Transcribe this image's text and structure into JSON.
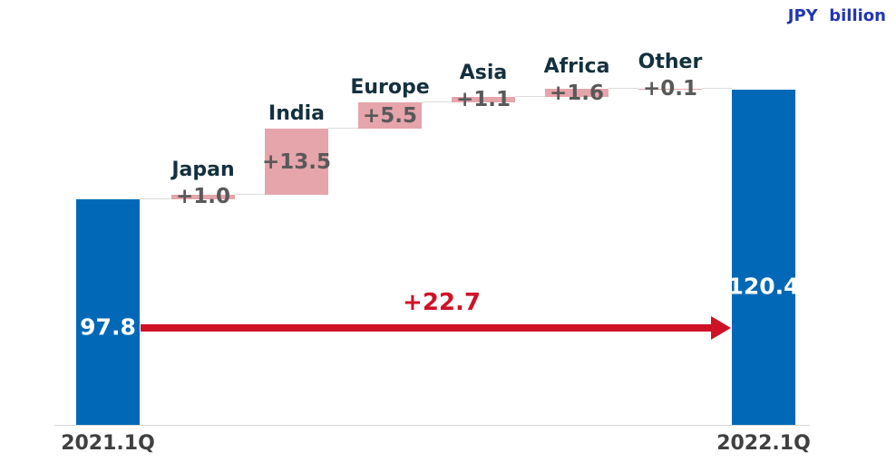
{
  "chart_data": {
    "type": "waterfall",
    "unit": "JPY billion",
    "start": {
      "category": "2021.1Q",
      "value": 97.8,
      "value_label": "97.8"
    },
    "steps": [
      {
        "category": "Japan",
        "delta": 1.0,
        "delta_label": "+1.0"
      },
      {
        "category": "India",
        "delta": 13.5,
        "delta_label": "+13.5"
      },
      {
        "category": "Europe",
        "delta": 5.5,
        "delta_label": "+5.5"
      },
      {
        "category": "Asia",
        "delta": 1.1,
        "delta_label": "+1.1"
      },
      {
        "category": "Africa",
        "delta": 1.6,
        "delta_label": "+1.6"
      },
      {
        "category": "Other",
        "delta": 0.1,
        "delta_label": "+0.1"
      }
    ],
    "end": {
      "category": "2022.1Q",
      "value": 120.4,
      "value_label": "120.4"
    },
    "total_change": {
      "value": 22.7,
      "label": "+22.7"
    },
    "layout_hint": {
      "grid": false,
      "legend": false,
      "y_axis_labels_hidden": true,
      "approx_axis_min_value": 51
    },
    "colors": {
      "bar_primary": "#0068B7",
      "bar_step": "#E6A4AB",
      "connector": "#DCDCDC",
      "axis_line": "#D8D8D8",
      "arrow": "#CF1126",
      "name_text": "#14303E",
      "value_text": "#595959",
      "bar_value_text": "#FFFFFF",
      "axis_text": "#404040",
      "unit_text": "#2136B2"
    }
  }
}
